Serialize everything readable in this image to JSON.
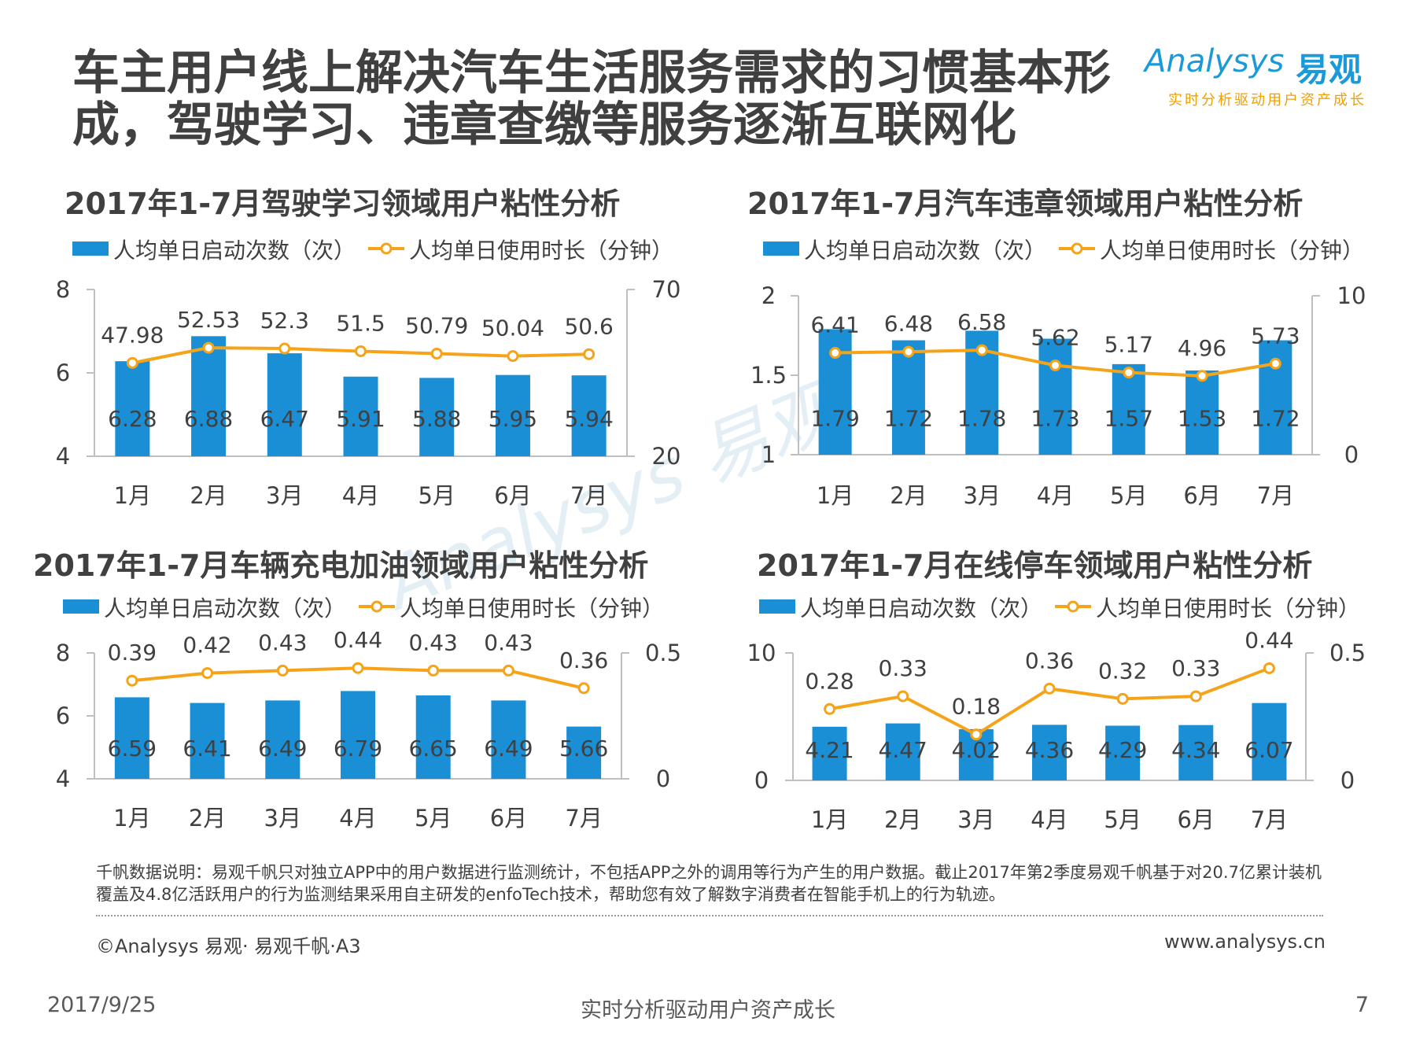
{
  "title": {
    "line1": "车主用户线上解决汽车生活服务需求的习惯基本形",
    "line2": "成，驾驶学习、违章查缴等服务逐渐互联网化"
  },
  "logo": {
    "word": "Analysys",
    "cn": "易观",
    "slogan": "实时分析驱动用户资产成长"
  },
  "watermark": "Analysys 易观",
  "colors": {
    "bar": "#1a8fd6",
    "line": "#f5a41a",
    "text": "#404040"
  },
  "chart_data": [
    {
      "type": "bar+line",
      "title": "2017年1-7月驾驶学习领域用户粘性分析",
      "categories": [
        "1月",
        "2月",
        "3月",
        "4月",
        "5月",
        "6月",
        "7月"
      ],
      "series": [
        {
          "name": "人均单日启动次数（次）",
          "kind": "bar",
          "axis": "left",
          "values": [
            6.28,
            6.88,
            6.47,
            5.91,
            5.88,
            5.95,
            5.94
          ],
          "labels": [
            "6.28",
            "6.88",
            "6.47",
            "5.91",
            "5.88",
            "5.95",
            "5.94"
          ]
        },
        {
          "name": "人均单日使用时长（分钟）",
          "kind": "line",
          "axis": "right",
          "values": [
            47.98,
            52.53,
            52.3,
            51.5,
            50.79,
            50.04,
            50.6
          ],
          "labels": [
            "47.98",
            "52.53",
            "52.3",
            "51.5",
            "50.79",
            "50.04",
            "50.6"
          ]
        }
      ],
      "left_axis": {
        "range": [
          4,
          8
        ],
        "ticks": [
          4,
          6,
          8
        ]
      },
      "right_axis": {
        "range": [
          20,
          70
        ],
        "ticks": [
          20,
          70
        ]
      }
    },
    {
      "type": "bar+line",
      "title": "2017年1-7月汽车违章领域用户粘性分析",
      "categories": [
        "1月",
        "2月",
        "3月",
        "4月",
        "5月",
        "6月",
        "7月"
      ],
      "series": [
        {
          "name": "人均单日启动次数（次）",
          "kind": "bar",
          "axis": "left",
          "values": [
            1.79,
            1.72,
            1.78,
            1.73,
            1.57,
            1.53,
            1.72
          ],
          "labels": [
            "1.79",
            "1.72",
            "1.78",
            "1.73",
            "1.57",
            "1.53",
            "1.72"
          ]
        },
        {
          "name": "人均单日使用时长（分钟）",
          "kind": "line",
          "axis": "right",
          "values": [
            6.41,
            6.48,
            6.58,
            5.62,
            5.17,
            4.96,
            5.73
          ],
          "labels": [
            "6.41",
            "6.48",
            "6.58",
            "5.62",
            "5.17",
            "4.96",
            "5.73"
          ]
        }
      ],
      "left_axis": {
        "range": [
          1,
          2
        ],
        "ticks": [
          1,
          1.5,
          2
        ]
      },
      "right_axis": {
        "range": [
          0,
          10
        ],
        "ticks": [
          0,
          10
        ]
      }
    },
    {
      "type": "bar+line",
      "title": "2017年1-7月车辆充电加油领域用户粘性分析",
      "categories": [
        "1月",
        "2月",
        "3月",
        "4月",
        "5月",
        "6月",
        "7月"
      ],
      "series": [
        {
          "name": "人均单日启动次数（次）",
          "kind": "bar",
          "axis": "left",
          "values": [
            6.59,
            6.41,
            6.49,
            6.79,
            6.65,
            6.49,
            5.66
          ],
          "labels": [
            "6.59",
            "6.41",
            "6.49",
            "6.79",
            "6.65",
            "6.49",
            "5.66"
          ]
        },
        {
          "name": "人均单日使用时长（分钟）",
          "kind": "line",
          "axis": "right",
          "values": [
            0.39,
            0.42,
            0.43,
            0.44,
            0.43,
            0.43,
            0.36
          ],
          "labels": [
            "0.39",
            "0.42",
            "0.43",
            "0.44",
            "0.43",
            "0.43",
            "0.36"
          ]
        }
      ],
      "left_axis": {
        "range": [
          4,
          8
        ],
        "ticks": [
          4,
          6,
          8
        ]
      },
      "right_axis": {
        "range": [
          0,
          0.5
        ],
        "ticks": [
          0,
          0.5
        ]
      }
    },
    {
      "type": "bar+line",
      "title": "2017年1-7月在线停车领域用户粘性分析",
      "categories": [
        "1月",
        "2月",
        "3月",
        "4月",
        "5月",
        "6月",
        "7月"
      ],
      "series": [
        {
          "name": "人均单日启动次数（次）",
          "kind": "bar",
          "axis": "left",
          "values": [
            4.21,
            4.47,
            4.02,
            4.36,
            4.29,
            4.34,
            6.07
          ],
          "labels": [
            "4.21",
            "4.47",
            "4.02",
            "4.36",
            "4.29",
            "4.34",
            "6.07"
          ]
        },
        {
          "name": "人均单日使用时长（分钟）",
          "kind": "line",
          "axis": "right",
          "values": [
            0.28,
            0.33,
            0.18,
            0.36,
            0.32,
            0.33,
            0.44
          ],
          "labels": [
            "0.28",
            "0.33",
            "0.18",
            "0.36",
            "0.32",
            "0.33",
            "0.44"
          ]
        }
      ],
      "left_axis": {
        "range": [
          0,
          10
        ],
        "ticks": [
          0,
          10
        ]
      },
      "right_axis": {
        "range": [
          0,
          0.5
        ],
        "ticks": [
          0,
          0.5
        ]
      }
    }
  ],
  "note": "千帆数据说明：易观千帆只对独立APP中的用户数据进行监测统计，不包括APP之外的调用等行为产生的用户数据。截止2017年第2季度易观千帆基于对20.7亿累计装机覆盖及4.8亿活跃用户的行为监测结果采用自主研发的enfoTech技术，帮助您有效了解数字消费者在智能手机上的行为轨迹。",
  "footer": {
    "copyright": "©Analysys 易观· 易观千帆·A3",
    "site": "www.analysys.cn",
    "date": "2017/9/25",
    "slogan": "实时分析驱动用户资产成长",
    "page": "7"
  }
}
